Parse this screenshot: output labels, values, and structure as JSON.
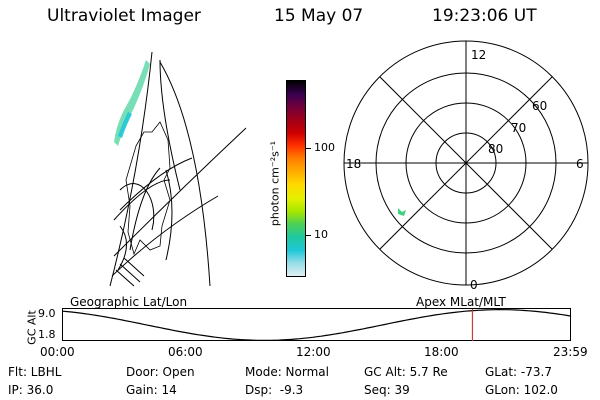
{
  "header": {
    "instrument": "Ultraviolet Imager",
    "date": "15 May 07",
    "time": "19:23:06 UT"
  },
  "left_panel": {
    "caption": "Geographic Lat/Lon"
  },
  "colorbar": {
    "label": "photon cm⁻²s⁻¹",
    "ticks": [
      "100",
      "10"
    ],
    "colors": [
      "#000000",
      "#3a0050",
      "#70003c",
      "#a00018",
      "#d00000",
      "#ff3000",
      "#ff8000",
      "#ffb000",
      "#ffd800",
      "#e6f000",
      "#a6e600",
      "#50d050",
      "#20c8a0",
      "#20c8d8",
      "#90dce6",
      "#e2eef0"
    ]
  },
  "polar_plot": {
    "caption": "Apex MLat/MLT",
    "mlt_labels": {
      "top": "12",
      "left": "18",
      "right": "6",
      "bottom": "0"
    },
    "lat_labels": [
      "60",
      "70",
      "80"
    ]
  },
  "altitude_strip": {
    "axis_label": "GC Alt",
    "ticks": [
      "9.0",
      "1.8"
    ],
    "time_ticks": [
      "00:00",
      "06:00",
      "12:00",
      "18:00",
      "23:59"
    ],
    "current_time_fraction": 0.806
  },
  "footer": {
    "row1": [
      "Flt: LBHL",
      "Door: Open",
      "Mode: Normal",
      "GC Alt: 5.7 Re",
      "GLat: -73.7"
    ],
    "row2": [
      "IP: 36.0",
      "Gain: 14",
      "Dsp:  -9.3",
      "Seq: 39",
      "GLon: 102.0"
    ]
  }
}
